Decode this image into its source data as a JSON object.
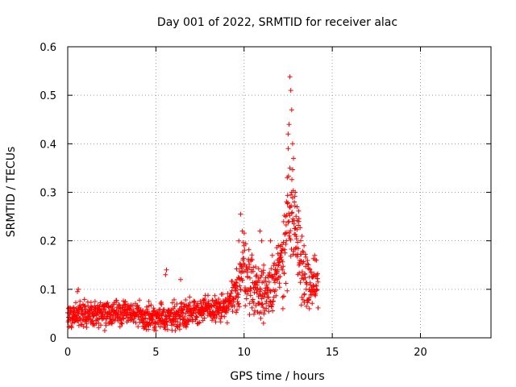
{
  "chart_data": {
    "type": "scatter",
    "title": "Day 001 of 2022, SRMTID for receiver alac",
    "xlabel": "GPS time / hours",
    "ylabel": "SRMTID / TECUs",
    "xlim": [
      0,
      24
    ],
    "ylim": [
      0,
      0.6
    ],
    "xticks": [
      0,
      5,
      10,
      15,
      20
    ],
    "yticks": [
      0,
      0.1,
      0.2,
      0.3,
      0.4,
      0.5,
      0.6
    ],
    "xtick_labels": [
      "0",
      "5",
      "10",
      "15",
      "20"
    ],
    "ytick_labels": [
      "0",
      "0.1",
      "0.2",
      "0.3",
      "0.4",
      "0.5",
      "0.6"
    ],
    "grid": true,
    "marker": "+",
    "series": [
      {
        "name": "SRMTID",
        "color": "#ff0000",
        "profile": [
          [
            0.0,
            0.045,
            0.018
          ],
          [
            1.0,
            0.048,
            0.018
          ],
          [
            2.0,
            0.05,
            0.018
          ],
          [
            3.0,
            0.053,
            0.018
          ],
          [
            4.0,
            0.048,
            0.018
          ],
          [
            5.0,
            0.04,
            0.02
          ],
          [
            6.0,
            0.045,
            0.02
          ],
          [
            7.0,
            0.055,
            0.02
          ],
          [
            8.0,
            0.058,
            0.018
          ],
          [
            9.0,
            0.06,
            0.02
          ],
          [
            9.5,
            0.09,
            0.03
          ],
          [
            10.0,
            0.15,
            0.05
          ],
          [
            10.5,
            0.11,
            0.04
          ],
          [
            11.0,
            0.09,
            0.04
          ],
          [
            11.5,
            0.11,
            0.04
          ],
          [
            12.0,
            0.13,
            0.05
          ],
          [
            12.5,
            0.25,
            0.09
          ],
          [
            13.0,
            0.2,
            0.06
          ],
          [
            13.5,
            0.11,
            0.04
          ],
          [
            14.0,
            0.11,
            0.03
          ],
          [
            14.2,
            0.1,
            0.03
          ]
        ],
        "points": [
          [
            12.6,
            0.538
          ],
          [
            12.65,
            0.51
          ],
          [
            12.7,
            0.47
          ],
          [
            12.55,
            0.44
          ],
          [
            12.5,
            0.42
          ],
          [
            12.75,
            0.4
          ],
          [
            12.8,
            0.37
          ],
          [
            12.6,
            0.35
          ],
          [
            12.45,
            0.33
          ],
          [
            12.9,
            0.3
          ],
          [
            12.85,
            0.28
          ],
          [
            13.0,
            0.27
          ],
          [
            12.35,
            0.25
          ],
          [
            13.1,
            0.24
          ],
          [
            12.7,
            0.3
          ],
          [
            9.8,
            0.255
          ],
          [
            9.9,
            0.22
          ],
          [
            9.7,
            0.2
          ],
          [
            10.0,
            0.19
          ],
          [
            10.9,
            0.22
          ],
          [
            11.0,
            0.2
          ],
          [
            11.5,
            0.2
          ],
          [
            11.6,
            0.17
          ],
          [
            11.8,
            0.15
          ],
          [
            5.6,
            0.14
          ],
          [
            5.55,
            0.13
          ],
          [
            6.4,
            0.12
          ],
          [
            0.6,
            0.1
          ],
          [
            0.55,
            0.095
          ],
          [
            4.6,
            0.075
          ],
          [
            10.95,
            0.04
          ],
          [
            11.1,
            0.03
          ],
          [
            12.2,
            0.06
          ],
          [
            13.7,
            0.06
          ],
          [
            5.0,
            0.015
          ],
          [
            6.1,
            0.015
          ],
          [
            2.1,
            0.015
          ],
          [
            14.0,
            0.17
          ],
          [
            14.1,
            0.16
          ],
          [
            13.4,
            0.19
          ],
          [
            12.15,
            0.18
          ],
          [
            12.05,
            0.165
          ],
          [
            11.9,
            0.12
          ],
          [
            9.6,
            0.12
          ],
          [
            9.55,
            0.1
          ]
        ]
      }
    ]
  }
}
